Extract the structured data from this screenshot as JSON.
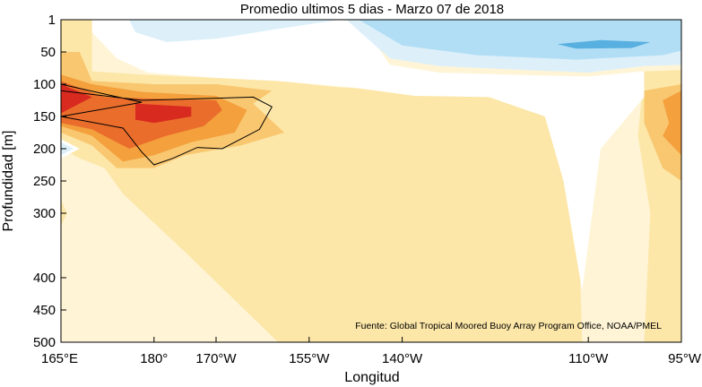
{
  "chart_data": {
    "type": "heatmap",
    "title": "Promedio ultimos 5 dias - Marzo 07 de 2018",
    "xlabel": "Longitud",
    "ylabel": "Profundidad [m]",
    "credit": "Fuente: Global Tropical Moored Buoy Array Program Office, NOAA/PMEL",
    "x_ticks": [
      {
        "value": 165,
        "label": "165°E"
      },
      {
        "value": 180,
        "label": "180°"
      },
      {
        "value": 190,
        "label": "170°W"
      },
      {
        "value": 205,
        "label": "155°W"
      },
      {
        "value": 220,
        "label": "140°W"
      },
      {
        "value": 250,
        "label": "110°W"
      },
      {
        "value": 265,
        "label": "95°W"
      }
    ],
    "y_ticks": [
      {
        "value": 1,
        "label": "1"
      },
      {
        "value": 50,
        "label": "50"
      },
      {
        "value": 100,
        "label": "100"
      },
      {
        "value": 150,
        "label": "150"
      },
      {
        "value": 200,
        "label": "200"
      },
      {
        "value": 250,
        "label": "250"
      },
      {
        "value": 300,
        "label": "300"
      },
      {
        "value": 400,
        "label": "400"
      },
      {
        "value": 450,
        "label": "450"
      },
      {
        "value": 500,
        "label": "500"
      }
    ],
    "xlim": [
      165,
      265
    ],
    "ylim": [
      500,
      1
    ],
    "grid": false,
    "colors": {
      "neg_weak": "#ddf0fa",
      "neg_mid": "#b2def5",
      "neg_strong": "#58b0e0",
      "pos_1": "#fff4d6",
      "pos_2": "#fce7a8",
      "pos_3": "#f9c770",
      "pos_4": "#f3a03d",
      "pos_5": "#ea6d2c",
      "pos_6": "#d92a20"
    },
    "regions": [
      {
        "level": "pos_1",
        "points": [
          [
            165,
            1
          ],
          [
            265,
            1
          ],
          [
            265,
            500
          ],
          [
            165,
            500
          ]
        ]
      },
      {
        "level": "pos_2",
        "points": [
          [
            165,
            1
          ],
          [
            170,
            1
          ],
          [
            170,
            80
          ],
          [
            178,
            85
          ],
          [
            200,
            95
          ],
          [
            210,
            105
          ],
          [
            230,
            115
          ],
          [
            240,
            120
          ],
          [
            248,
            170
          ],
          [
            249,
            500
          ],
          [
            200,
            500
          ],
          [
            185,
            360
          ],
          [
            175,
            270
          ],
          [
            172,
            230
          ],
          [
            168,
            215
          ],
          [
            165,
            200
          ]
        ]
      },
      {
        "level": "pos_2",
        "points": [
          [
            165,
            280
          ],
          [
            166,
            300
          ],
          [
            165,
            320
          ]
        ]
      },
      {
        "level": "pos_2",
        "points": [
          [
            259,
            80
          ],
          [
            265,
            78
          ],
          [
            265,
            500
          ],
          [
            259,
            500
          ],
          [
            260,
            300
          ],
          [
            258,
            180
          ]
        ]
      },
      {
        "level": "pos_3",
        "points": [
          [
            165,
            50
          ],
          [
            168,
            50
          ],
          [
            170,
            95
          ],
          [
            180,
            100
          ],
          [
            190,
            100
          ],
          [
            199,
            110
          ],
          [
            196,
            130
          ],
          [
            201,
            175
          ],
          [
            194,
            195
          ],
          [
            185,
            210
          ],
          [
            180,
            230
          ],
          [
            174,
            230
          ],
          [
            170,
            195
          ],
          [
            165,
            175
          ]
        ]
      },
      {
        "level": "pos_3",
        "points": [
          [
            259,
            110
          ],
          [
            265,
            100
          ],
          [
            265,
            250
          ],
          [
            262,
            230
          ],
          [
            259,
            160
          ]
        ]
      },
      {
        "level": "pos_4",
        "points": [
          [
            165,
            85
          ],
          [
            170,
            100
          ],
          [
            178,
            112
          ],
          [
            190,
            118
          ],
          [
            195,
            140
          ],
          [
            193,
            175
          ],
          [
            186,
            190
          ],
          [
            180,
            210
          ],
          [
            175,
            220
          ],
          [
            170,
            180
          ],
          [
            165,
            165
          ]
        ]
      },
      {
        "level": "pos_4",
        "points": [
          [
            262,
            125
          ],
          [
            265,
            110
          ],
          [
            265,
            210
          ],
          [
            262,
            180
          ],
          [
            263,
            160
          ]
        ]
      },
      {
        "level": "pos_5",
        "points": [
          [
            165,
            95
          ],
          [
            172,
            120
          ],
          [
            178,
            122
          ],
          [
            190,
            125
          ],
          [
            191,
            140
          ],
          [
            188,
            165
          ],
          [
            182,
            180
          ],
          [
            176,
            200
          ],
          [
            173,
            185
          ],
          [
            170,
            170
          ],
          [
            165,
            160
          ]
        ]
      },
      {
        "level": "pos_6",
        "points": [
          [
            165,
            100
          ],
          [
            170,
            120
          ],
          [
            165,
            145
          ]
        ]
      },
      {
        "level": "pos_6",
        "points": [
          [
            177,
            130
          ],
          [
            186,
            135
          ],
          [
            186,
            150
          ],
          [
            180,
            160
          ],
          [
            177,
            155
          ]
        ]
      },
      {
        "level": "white",
        "points": [
          [
            170,
            1
          ],
          [
            213,
            1
          ],
          [
            218,
            70
          ],
          [
            226,
            82
          ],
          [
            240,
            86
          ],
          [
            250,
            88
          ],
          [
            259,
            80
          ],
          [
            259,
            120
          ],
          [
            252,
            200
          ],
          [
            249,
            420
          ],
          [
            246,
            250
          ],
          [
            243,
            150
          ],
          [
            234,
            120
          ],
          [
            222,
            118
          ],
          [
            212,
            105
          ],
          [
            200,
            95
          ],
          [
            190,
            90
          ],
          [
            179,
            82
          ],
          [
            174,
            60
          ],
          [
            170,
            20
          ]
        ]
      },
      {
        "level": "white",
        "points": [
          [
            165,
            185
          ],
          [
            168,
            200
          ],
          [
            165,
            215
          ]
        ]
      },
      {
        "level": "neg_weak",
        "points": [
          [
            176,
            1
          ],
          [
            211,
            1
          ],
          [
            218,
            60
          ],
          [
            226,
            72
          ],
          [
            240,
            78
          ],
          [
            250,
            82
          ],
          [
            259,
            72
          ],
          [
            265,
            70
          ],
          [
            265,
            1
          ],
          [
            211,
            1
          ],
          [
            210,
            1
          ],
          [
            200,
            15
          ],
          [
            190,
            30
          ],
          [
            182,
            35
          ],
          [
            177,
            20
          ]
        ]
      },
      {
        "level": "neg_weak",
        "points": [
          [
            165,
            190
          ],
          [
            167,
            200
          ],
          [
            165,
            210
          ]
        ]
      },
      {
        "level": "neg_mid",
        "points": [
          [
            205,
            1
          ],
          [
            213,
            1
          ],
          [
            220,
            40
          ],
          [
            232,
            55
          ],
          [
            248,
            62
          ],
          [
            262,
            55
          ],
          [
            265,
            48
          ],
          [
            265,
            1
          ],
          [
            213,
            1
          ],
          [
            212,
            1
          ]
        ]
      },
      {
        "level": "neg_strong",
        "points": [
          [
            245,
            38
          ],
          [
            252,
            32
          ],
          [
            260,
            35
          ],
          [
            257,
            44
          ],
          [
            248,
            45
          ]
        ]
      }
    ],
    "contours": [
      {
        "level": 3,
        "points": [
          [
            165,
            100
          ],
          [
            178,
            128
          ],
          [
            165,
            150
          ],
          [
            175,
            168
          ],
          [
            178,
            205
          ],
          [
            180,
            225
          ],
          [
            183,
            215
          ],
          [
            187,
            198
          ],
          [
            191,
            200
          ],
          [
            197,
            170
          ],
          [
            199,
            135
          ],
          [
            196,
            120
          ],
          [
            182,
            124
          ],
          [
            178,
            125
          ],
          [
            165,
            110
          ]
        ]
      }
    ]
  }
}
